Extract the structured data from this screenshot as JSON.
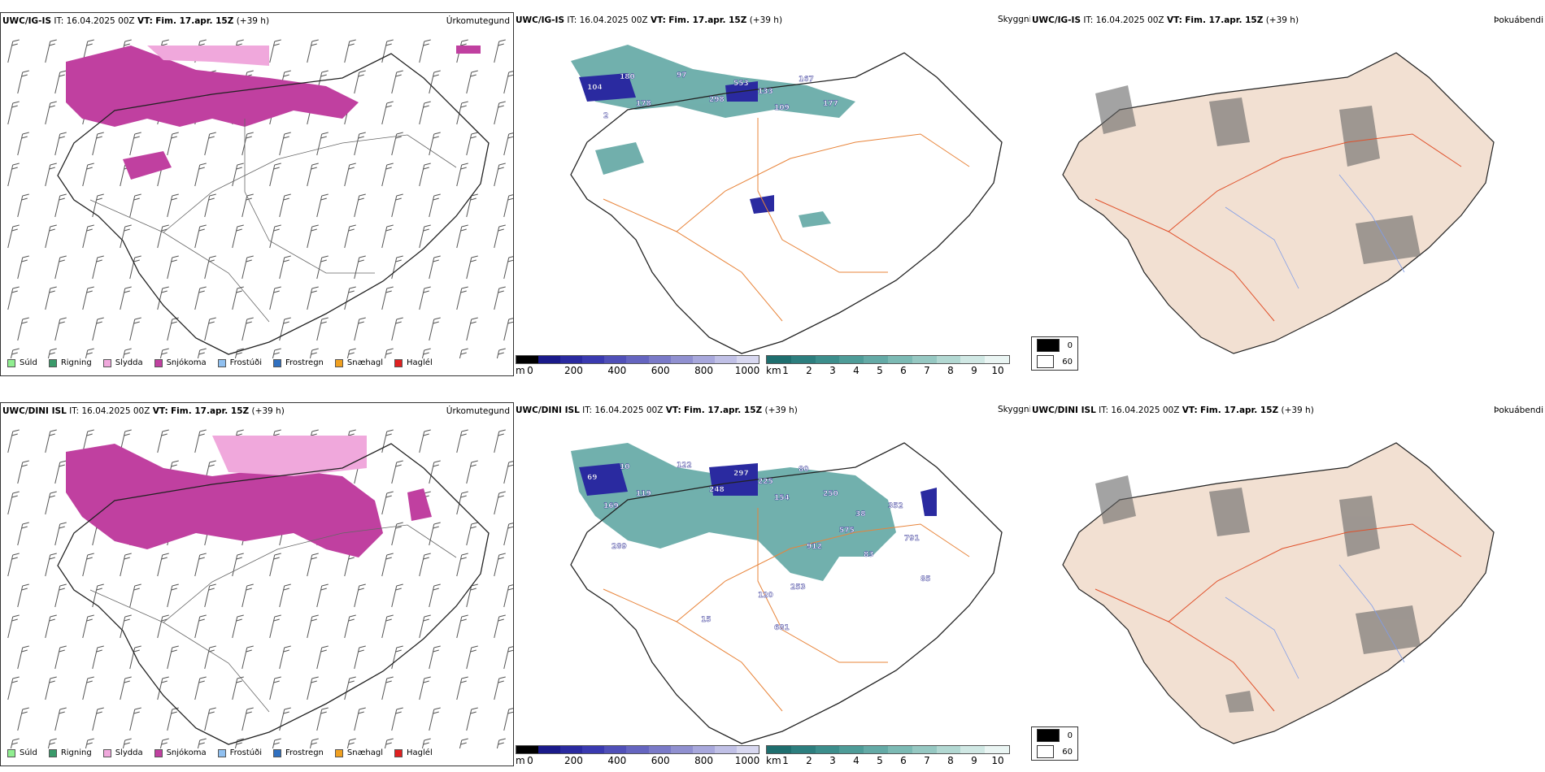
{
  "rows": [
    {
      "model": "UWC/IG-IS",
      "it_label": "IT:",
      "it_value": "16.04.2025 00Z",
      "vt_label": "VT:",
      "vt_value": "Fim. 17.apr. 15Z",
      "lead": "(+39 h)"
    },
    {
      "model": "UWC/DINI ISL",
      "it_label": "IT:",
      "it_value": "16.04.2025 00Z",
      "vt_label": "VT:",
      "vt_value": "Fim. 17.apr. 15Z",
      "lead": "(+39 h)"
    }
  ],
  "panels": {
    "precip_title": "Úrkomutegund",
    "visibility_title": "Skyggni",
    "cloud_title": "Þokuábendi"
  },
  "precip_legend": [
    {
      "label": "Súld",
      "color": "#90ee90"
    },
    {
      "label": "Rigning",
      "color": "#3a9a6a"
    },
    {
      "label": "Slydda",
      "color": "#f0a8dc"
    },
    {
      "label": "Snjókoma",
      "color": "#c040a0"
    },
    {
      "label": "Frostúði",
      "color": "#90c0f0"
    },
    {
      "label": "Frostregn",
      "color": "#3070c0"
    },
    {
      "label": "Snæhagl",
      "color": "#f0a020"
    },
    {
      "label": "Haglél",
      "color": "#e02020"
    }
  ],
  "height_scale": {
    "unit": "m",
    "ticks": [
      "0",
      "200",
      "400",
      "600",
      "800",
      "1000"
    ],
    "colors": [
      "#000000",
      "#1a1a8a",
      "#2a2aa0",
      "#3a3ab0",
      "#5050b8",
      "#6565c0",
      "#7a7ac8",
      "#9090d0",
      "#a8a8dc",
      "#c0c0e6",
      "#d8d8f0"
    ]
  },
  "visibility_scale": {
    "unit": "km",
    "ticks": [
      "1",
      "2",
      "3",
      "4",
      "5",
      "6",
      "7",
      "8",
      "9",
      "10"
    ],
    "colors": [
      "#1e6e6e",
      "#2c7e7e",
      "#3c8e8c",
      "#4e9c98",
      "#64aaa6",
      "#7cbab4",
      "#96c8c2",
      "#b2d8d2",
      "#d0e8e4",
      "#eaf5f3"
    ]
  },
  "fog_scale": {
    "items": [
      {
        "label": "0",
        "color": "#000000"
      },
      {
        "label": "60",
        "color": "#ffffff"
      }
    ]
  },
  "cloud_labels": {
    "top": [
      "104",
      "180",
      "178",
      "2",
      "97",
      "298",
      "553",
      "133",
      "109",
      "167",
      "177"
    ],
    "bottom": [
      "69",
      "10",
      "119",
      "169",
      "122",
      "248",
      "297",
      "225",
      "154",
      "80",
      "250",
      "289",
      "120",
      "253",
      "38",
      "352",
      "791",
      "575",
      "83",
      "912",
      "681",
      "15",
      "85"
    ]
  }
}
